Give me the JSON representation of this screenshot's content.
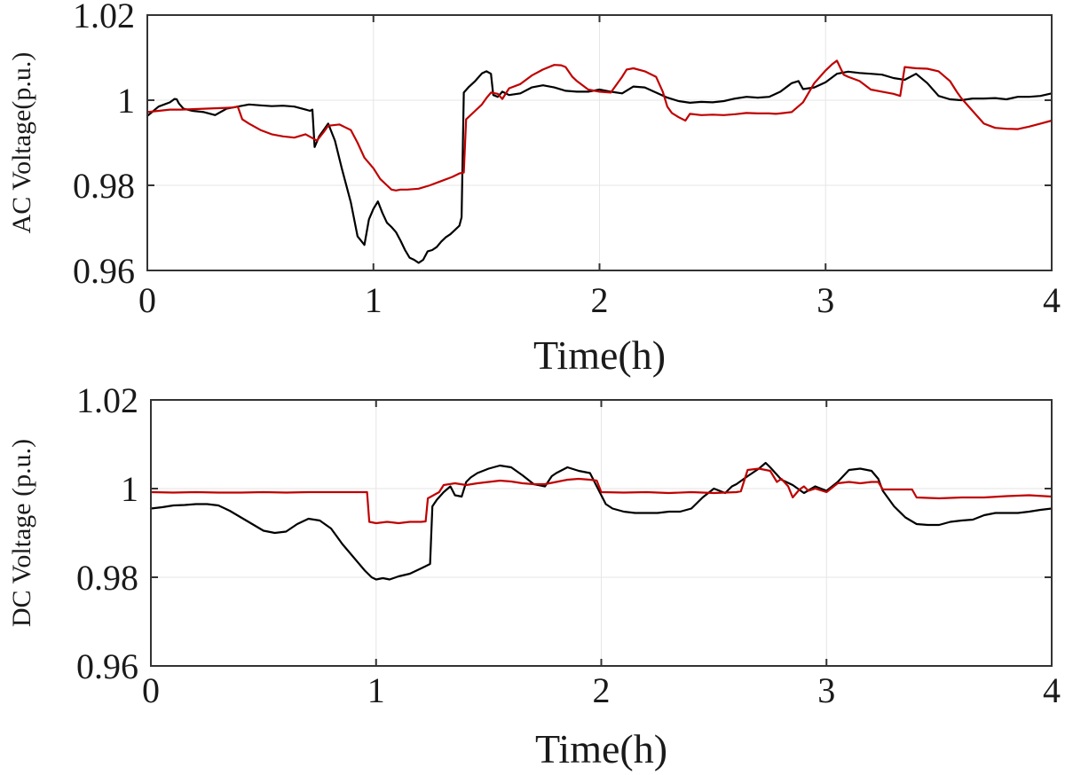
{
  "chart_data": [
    {
      "type": "line",
      "xlabel": "Time(h)",
      "ylabel": "AC  Voltage(p.u.)",
      "xlim": [
        0,
        4
      ],
      "ylim": [
        0.96,
        1.02
      ],
      "xticks": [
        0,
        1,
        2,
        3,
        4
      ],
      "xtick_labels": [
        "0",
        "1",
        "2",
        "3",
        "4"
      ],
      "yticks": [
        0.96,
        0.98,
        1.0,
        1.02
      ],
      "ytick_labels": [
        "0.96",
        "0.98",
        "1",
        "1.02"
      ],
      "grid": true,
      "colors": {
        "black": "#000000",
        "red": "#c00000"
      },
      "series": [
        {
          "color": "#000000",
          "x": [
            0.0,
            0.05,
            0.1,
            0.12,
            0.13,
            0.14,
            0.16,
            0.2,
            0.25,
            0.3,
            0.35,
            0.4,
            0.45,
            0.5,
            0.55,
            0.6,
            0.65,
            0.7,
            0.72,
            0.73,
            0.74,
            0.76,
            0.78,
            0.8,
            0.83,
            0.86,
            0.9,
            0.93,
            0.96,
            0.98,
            1.0,
            1.02,
            1.04,
            1.06,
            1.08,
            1.1,
            1.12,
            1.14,
            1.16,
            1.18,
            1.2,
            1.22,
            1.24,
            1.26,
            1.28,
            1.3,
            1.32,
            1.34,
            1.36,
            1.38,
            1.39,
            1.4,
            1.42,
            1.45,
            1.48,
            1.5,
            1.52,
            1.53,
            1.55,
            1.57,
            1.6,
            1.65,
            1.7,
            1.75,
            1.8,
            1.85,
            1.9,
            1.95,
            2.0,
            2.05,
            2.1,
            2.15,
            2.2,
            2.25,
            2.3,
            2.35,
            2.4,
            2.45,
            2.5,
            2.55,
            2.6,
            2.65,
            2.7,
            2.75,
            2.8,
            2.85,
            2.88,
            2.9,
            2.95,
            3.0,
            3.05,
            3.1,
            3.15,
            3.2,
            3.25,
            3.3,
            3.35,
            3.4,
            3.45,
            3.5,
            3.55,
            3.6,
            3.65,
            3.7,
            3.75,
            3.8,
            3.85,
            3.9,
            3.95,
            4.0
          ],
          "y": [
            0.9963,
            0.9985,
            0.9995,
            1.0003,
            1.0002,
            0.9992,
            0.998,
            0.9975,
            0.9972,
            0.9965,
            0.998,
            0.9985,
            0.999,
            0.9988,
            0.9986,
            0.9987,
            0.9985,
            0.9978,
            0.9975,
            0.9978,
            0.989,
            0.9915,
            0.993,
            0.9945,
            0.9905,
            0.984,
            0.976,
            0.968,
            0.966,
            0.972,
            0.9745,
            0.9762,
            0.9735,
            0.9712,
            0.9702,
            0.969,
            0.967,
            0.9648,
            0.963,
            0.9625,
            0.9618,
            0.9625,
            0.9645,
            0.9648,
            0.9655,
            0.9668,
            0.9678,
            0.9685,
            0.9695,
            0.9705,
            0.9725,
            1.0018,
            1.003,
            1.0045,
            1.0063,
            1.0068,
            1.0062,
            1.0012,
            1.0008,
            1.002,
            1.0012,
            1.0016,
            1.003,
            1.0035,
            1.003,
            1.0022,
            1.002,
            1.002,
            1.0025,
            1.002,
            1.0016,
            1.0032,
            1.003,
            1.0018,
            1.0006,
            0.9998,
            0.9994,
            0.9996,
            0.9995,
            0.9998,
            1.0004,
            1.0008,
            1.0006,
            1.0008,
            1.002,
            1.004,
            1.0045,
            1.0026,
            1.003,
            1.0042,
            1.0062,
            1.0067,
            1.0064,
            1.0062,
            1.006,
            1.0052,
            1.0048,
            1.0062,
            1.004,
            1.001,
            1.0002,
            1.0,
            1.0004,
            1.0004,
            1.0005,
            1.0002,
            1.0008,
            1.0008,
            1.001,
            1.0016
          ]
        },
        {
          "color": "#c00000",
          "x": [
            0.0,
            0.05,
            0.1,
            0.15,
            0.2,
            0.25,
            0.3,
            0.35,
            0.38,
            0.4,
            0.42,
            0.45,
            0.5,
            0.55,
            0.6,
            0.65,
            0.7,
            0.75,
            0.78,
            0.8,
            0.85,
            0.88,
            0.9,
            0.93,
            0.96,
            1.0,
            1.03,
            1.06,
            1.08,
            1.1,
            1.12,
            1.15,
            1.2,
            1.25,
            1.3,
            1.35,
            1.38,
            1.4,
            1.41,
            1.45,
            1.48,
            1.5,
            1.52,
            1.55,
            1.57,
            1.6,
            1.65,
            1.7,
            1.75,
            1.8,
            1.83,
            1.85,
            1.88,
            1.9,
            1.95,
            2.0,
            2.05,
            2.1,
            2.12,
            2.15,
            2.2,
            2.25,
            2.28,
            2.3,
            2.32,
            2.35,
            2.38,
            2.4,
            2.45,
            2.5,
            2.55,
            2.6,
            2.65,
            2.7,
            2.75,
            2.78,
            2.8,
            2.85,
            2.9,
            2.95,
            3.0,
            3.03,
            3.05,
            3.08,
            3.1,
            3.15,
            3.2,
            3.25,
            3.3,
            3.33,
            3.35,
            3.4,
            3.45,
            3.5,
            3.55,
            3.58,
            3.6,
            3.65,
            3.7,
            3.75,
            3.8,
            3.85,
            3.9,
            3.95,
            4.0
          ],
          "y": [
            0.9972,
            0.9975,
            0.9978,
            0.9978,
            0.9979,
            0.998,
            0.9981,
            0.9982,
            0.9983,
            0.9985,
            0.9955,
            0.9945,
            0.993,
            0.992,
            0.9915,
            0.9912,
            0.992,
            0.9905,
            0.9925,
            0.994,
            0.9943,
            0.9935,
            0.993,
            0.99,
            0.9865,
            0.984,
            0.9815,
            0.98,
            0.979,
            0.9788,
            0.979,
            0.979,
            0.9792,
            0.98,
            0.981,
            0.982,
            0.9828,
            0.983,
            0.9955,
            0.9975,
            0.999,
            1.0005,
            1.0018,
            1.0015,
            1.0003,
            1.0028,
            1.0038,
            1.0058,
            1.0072,
            1.0083,
            1.0082,
            1.0078,
            1.0055,
            1.0045,
            1.0025,
            1.002,
            1.0018,
            1.0055,
            1.0072,
            1.0075,
            1.0068,
            1.0055,
            1.002,
            0.9985,
            0.997,
            0.996,
            0.9952,
            0.9968,
            0.9965,
            0.9966,
            0.9965,
            0.9967,
            0.997,
            0.9969,
            0.9969,
            0.9968,
            0.9969,
            0.9972,
            0.9995,
            1.004,
            1.007,
            1.0085,
            1.0093,
            1.006,
            1.0055,
            1.0045,
            1.0025,
            1.002,
            1.0015,
            1.001,
            1.0078,
            1.0075,
            1.0074,
            1.0068,
            1.0045,
            1.002,
            1.0005,
            0.9975,
            0.9945,
            0.9935,
            0.9933,
            0.9932,
            0.9938,
            0.9945,
            0.9952
          ]
        }
      ]
    },
    {
      "type": "line",
      "xlabel": "Time(h)",
      "ylabel": "DC  Voltage (p.u.)",
      "xlim": [
        0,
        4
      ],
      "ylim": [
        0.96,
        1.02
      ],
      "xticks": [
        0,
        1,
        2,
        3,
        4
      ],
      "xtick_labels": [
        "0",
        "1",
        "2",
        "3",
        "4"
      ],
      "yticks": [
        0.96,
        0.98,
        1.0,
        1.02
      ],
      "ytick_labels": [
        "0.96",
        "0.98",
        "1",
        "1.02"
      ],
      "grid": true,
      "colors": {
        "black": "#000000",
        "red": "#c00000"
      },
      "series": [
        {
          "color": "#000000",
          "x": [
            0.0,
            0.05,
            0.1,
            0.15,
            0.2,
            0.25,
            0.3,
            0.35,
            0.4,
            0.45,
            0.5,
            0.55,
            0.6,
            0.65,
            0.7,
            0.75,
            0.8,
            0.85,
            0.9,
            0.95,
            0.98,
            1.0,
            1.03,
            1.06,
            1.1,
            1.15,
            1.2,
            1.22,
            1.24,
            1.25,
            1.27,
            1.3,
            1.33,
            1.35,
            1.38,
            1.4,
            1.42,
            1.45,
            1.5,
            1.55,
            1.6,
            1.65,
            1.7,
            1.75,
            1.78,
            1.8,
            1.85,
            1.9,
            1.95,
            2.0,
            2.02,
            2.05,
            2.1,
            2.15,
            2.2,
            2.25,
            2.3,
            2.35,
            2.4,
            2.45,
            2.5,
            2.55,
            2.58,
            2.6,
            2.65,
            2.7,
            2.73,
            2.75,
            2.8,
            2.85,
            2.9,
            2.95,
            3.0,
            3.05,
            3.1,
            3.15,
            3.2,
            3.23,
            3.25,
            3.3,
            3.35,
            3.4,
            3.45,
            3.5,
            3.55,
            3.6,
            3.65,
            3.7,
            3.75,
            3.8,
            3.85,
            3.9,
            3.95,
            4.0
          ],
          "y": [
            0.9955,
            0.9958,
            0.9962,
            0.9963,
            0.9965,
            0.9965,
            0.9962,
            0.995,
            0.9935,
            0.992,
            0.9905,
            0.99,
            0.9903,
            0.992,
            0.9932,
            0.9928,
            0.991,
            0.9875,
            0.9845,
            0.9815,
            0.98,
            0.9795,
            0.9798,
            0.9795,
            0.9802,
            0.9808,
            0.982,
            0.9825,
            0.983,
            0.996,
            0.9975,
            0.9992,
            1.0005,
            0.9985,
            0.9982,
            1.0015,
            1.0025,
            1.0035,
            1.0045,
            1.0052,
            1.0048,
            1.003,
            1.001,
            1.0005,
            1.0028,
            1.0035,
            1.0048,
            1.004,
            1.0035,
            0.9985,
            0.9965,
            0.9955,
            0.9948,
            0.9945,
            0.9945,
            0.9945,
            0.9948,
            0.9948,
            0.9955,
            0.998,
            1.0,
            0.999,
            1.0005,
            1.001,
            1.0028,
            1.0045,
            1.0058,
            1.0048,
            1.002,
            1.0008,
            0.999,
            1.0005,
            0.9995,
            1.0015,
            1.0042,
            1.0045,
            1.004,
            1.0022,
            0.9995,
            0.996,
            0.9935,
            0.992,
            0.9918,
            0.9918,
            0.9925,
            0.9928,
            0.993,
            0.994,
            0.9945,
            0.9945,
            0.9945,
            0.9948,
            0.9952,
            0.9955
          ]
        },
        {
          "color": "#c00000",
          "x": [
            0.0,
            0.1,
            0.2,
            0.3,
            0.4,
            0.5,
            0.6,
            0.7,
            0.8,
            0.9,
            0.96,
            0.97,
            1.0,
            1.05,
            1.1,
            1.15,
            1.2,
            1.22,
            1.23,
            1.28,
            1.3,
            1.35,
            1.4,
            1.45,
            1.5,
            1.55,
            1.6,
            1.65,
            1.7,
            1.75,
            1.8,
            1.85,
            1.9,
            1.95,
            1.98,
            2.0,
            2.1,
            2.2,
            2.3,
            2.4,
            2.5,
            2.6,
            2.62,
            2.65,
            2.7,
            2.75,
            2.78,
            2.8,
            2.83,
            2.85,
            2.88,
            2.9,
            2.92,
            2.95,
            3.0,
            3.05,
            3.1,
            3.15,
            3.2,
            3.23,
            3.25,
            3.3,
            3.35,
            3.38,
            3.4,
            3.5,
            3.6,
            3.7,
            3.8,
            3.9,
            4.0
          ],
          "y": [
            0.9992,
            0.9991,
            0.9992,
            0.9991,
            0.9991,
            0.9992,
            0.9991,
            0.9992,
            0.9992,
            0.9992,
            0.9992,
            0.9925,
            0.9922,
            0.9925,
            0.9922,
            0.9925,
            0.9925,
            0.9926,
            0.9978,
            0.9992,
            1.0008,
            1.0012,
            1.0008,
            1.0012,
            1.0015,
            1.0018,
            1.0016,
            1.0012,
            1.001,
            1.001,
            1.0015,
            1.002,
            1.0022,
            1.002,
            1.0018,
            0.9992,
            0.9991,
            0.9992,
            0.999,
            0.9992,
            0.999,
            0.9992,
            0.9994,
            1.0042,
            1.0045,
            1.004,
            1.0015,
            1.0022,
            1.0005,
            0.998,
            0.9998,
            1.0005,
            0.9995,
            1.0,
            0.9992,
            1.0012,
            1.0015,
            1.0012,
            1.0015,
            1.0015,
            0.9998,
            0.9998,
            0.9998,
            0.9998,
            0.998,
            0.9978,
            0.998,
            0.998,
            0.9983,
            0.9985,
            0.9982
          ]
        }
      ]
    }
  ]
}
